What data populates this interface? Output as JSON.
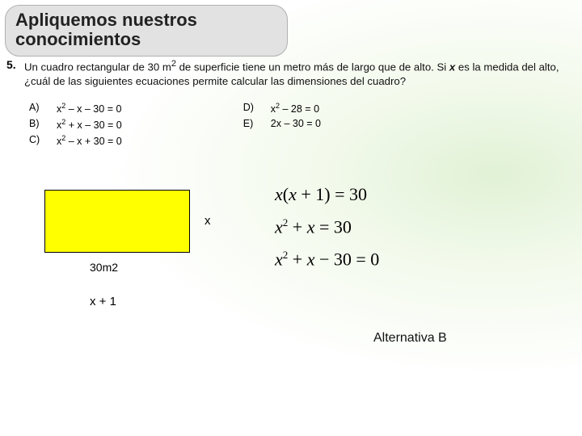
{
  "header": {
    "title": "Apliquemos nuestros conocimientos"
  },
  "question": {
    "number": "5.",
    "stem_before_x": "Un cuadro rectangular de 30 m",
    "stem_sup": "2",
    "stem_mid": " de superficie tiene un metro más de largo que de alto. Si ",
    "stem_x": "x",
    "stem_after_x": " es la medida del alto, ¿cuál de las siguientes ecuaciones permite calcular las dimensiones del cuadro?"
  },
  "choices_left": [
    {
      "label": "A)",
      "eq_pre": "x",
      "eq_sup": "2",
      "eq_post": " – x – 30 = 0"
    },
    {
      "label": "B)",
      "eq_pre": "x",
      "eq_sup": "2",
      "eq_post": " + x – 30 = 0"
    },
    {
      "label": "C)",
      "eq_pre": "x",
      "eq_sup": "2",
      "eq_post": " – x + 30 = 0"
    }
  ],
  "choices_right": [
    {
      "label": "D)",
      "eq_pre": "x",
      "eq_sup": "2",
      "eq_post": " – 28 = 0"
    },
    {
      "label": "E)",
      "eq_pre": "2x",
      "eq_sup": "",
      "eq_post": " – 30 = 0"
    }
  ],
  "diagram": {
    "area": "30m2",
    "height": "x",
    "width": "x + 1",
    "fill": "#ffff00",
    "border": "#000000"
  },
  "work_equations": [
    {
      "lhs": "x(x+1)",
      "rhs": "30",
      "sup": ""
    },
    {
      "lhs_pre": "x",
      "lhs_sup": "2",
      "lhs_post": " + x",
      "rhs": "30"
    },
    {
      "lhs_pre": "x",
      "lhs_sup": "2",
      "lhs_post": " + x − 30",
      "rhs": "0"
    }
  ],
  "answer": {
    "text": "Alternativa B"
  },
  "colors": {
    "header_bg": "#e2e2e2",
    "header_border": "#b0b0b0",
    "body_accent": "#d4ecc6"
  },
  "fonts": {
    "header_size": 22,
    "stem_size": 13,
    "choice_size": 12,
    "eq_size": 22,
    "answer_size": 16
  }
}
